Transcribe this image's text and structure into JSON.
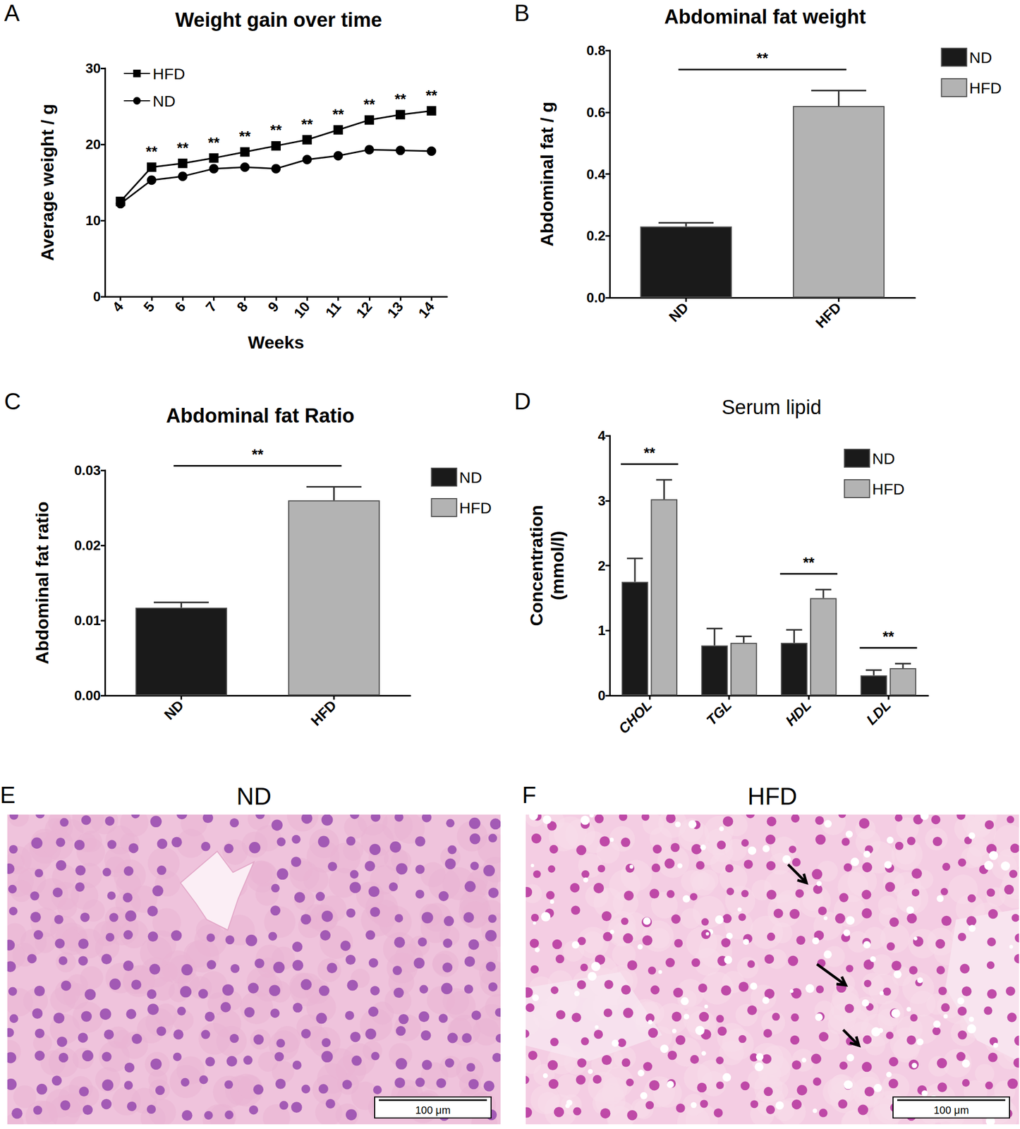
{
  "chart_data": [
    {
      "panel": "A",
      "type": "line",
      "title": "Weight gain over time",
      "xlabel": "Weeks",
      "ylabel": "Average weight / g",
      "categories": [
        "4",
        "5",
        "6",
        "7",
        "8",
        "9",
        "10",
        "11",
        "12",
        "13",
        "14"
      ],
      "series": [
        {
          "name": "HFD",
          "color": "#000000",
          "marker": "square",
          "values": [
            12.5,
            17.0,
            17.5,
            18.2,
            19.0,
            19.8,
            20.6,
            21.9,
            23.2,
            23.9,
            24.4
          ]
        },
        {
          "name": "ND",
          "color": "#000000",
          "marker": "circle",
          "values": [
            12.2,
            15.3,
            15.8,
            16.8,
            17.0,
            16.8,
            18.0,
            18.5,
            19.3,
            19.2,
            19.1
          ]
        }
      ],
      "significance": [
        null,
        "**",
        "**",
        "**",
        "**",
        "**",
        "**",
        "**",
        "**",
        "**",
        "**"
      ],
      "ylim": [
        0,
        30
      ],
      "yticks": [
        0,
        10,
        20,
        30
      ],
      "legend": "upper left",
      "grid": false
    },
    {
      "panel": "B",
      "type": "bar",
      "title": "Abdominal fat weight",
      "ylabel": "Abdominal fat / g",
      "categories": [
        "ND",
        "HFD"
      ],
      "series": [
        {
          "name": "ND",
          "color": "#1a1a1a",
          "values": [
            0.23,
            null
          ],
          "errors": [
            0.012,
            null
          ]
        },
        {
          "name": "HFD",
          "color": "#b3b3b3",
          "values": [
            null,
            0.62
          ],
          "errors": [
            null,
            0.05
          ]
        }
      ],
      "significance": "**",
      "ylim": [
        0,
        0.8
      ],
      "yticks": [
        {
          "value": 0,
          "label": "0.0"
        },
        0.2,
        0.4,
        0.6,
        0.8
      ],
      "legend": "right",
      "grid": false
    },
    {
      "panel": "C",
      "type": "bar",
      "title": "Abdominal fat Ratio",
      "ylabel": "Abdominal fat ratio",
      "categories": [
        "ND",
        "HFD"
      ],
      "series": [
        {
          "name": "ND",
          "color": "#1a1a1a",
          "values": [
            0.0117,
            null
          ],
          "errors": [
            0.0007,
            null
          ]
        },
        {
          "name": "HFD",
          "color": "#b3b3b3",
          "values": [
            null,
            0.026
          ],
          "errors": [
            null,
            0.0018
          ]
        }
      ],
      "significance": "**",
      "ylim": [
        0,
        0.03
      ],
      "yticks": [
        {
          "value": 0,
          "label": "0.00"
        },
        {
          "value": 0.01,
          "label": "0.01"
        },
        {
          "value": 0.02,
          "label": "0.02"
        },
        {
          "value": 0.03,
          "label": "0.03"
        }
      ],
      "legend": "right",
      "grid": false
    },
    {
      "panel": "D",
      "type": "bar",
      "title": "Serum lipid",
      "ylabel": "Concentration\n(mmol/l)",
      "categories": [
        "CHOL",
        "TGL",
        "HDL",
        "LDL"
      ],
      "series": [
        {
          "name": "ND",
          "color": "#1a1a1a",
          "values": [
            1.75,
            0.77,
            0.81,
            0.31
          ],
          "errors": [
            0.36,
            0.26,
            0.2,
            0.08
          ]
        },
        {
          "name": "HFD",
          "color": "#b3b3b3",
          "values": [
            3.02,
            0.81,
            1.5,
            0.42
          ],
          "errors": [
            0.3,
            0.1,
            0.13,
            0.07
          ]
        }
      ],
      "significance": [
        "**",
        null,
        "**",
        "**"
      ],
      "ylim": [
        0,
        4
      ],
      "yticks": [
        0,
        1,
        2,
        3,
        4
      ],
      "legend": "upper right",
      "grid": false
    }
  ],
  "images": [
    {
      "panel": "E",
      "title": "ND",
      "scale_bar": "100 μm"
    },
    {
      "panel": "F",
      "title": "HFD",
      "scale_bar": "100 μm"
    }
  ]
}
